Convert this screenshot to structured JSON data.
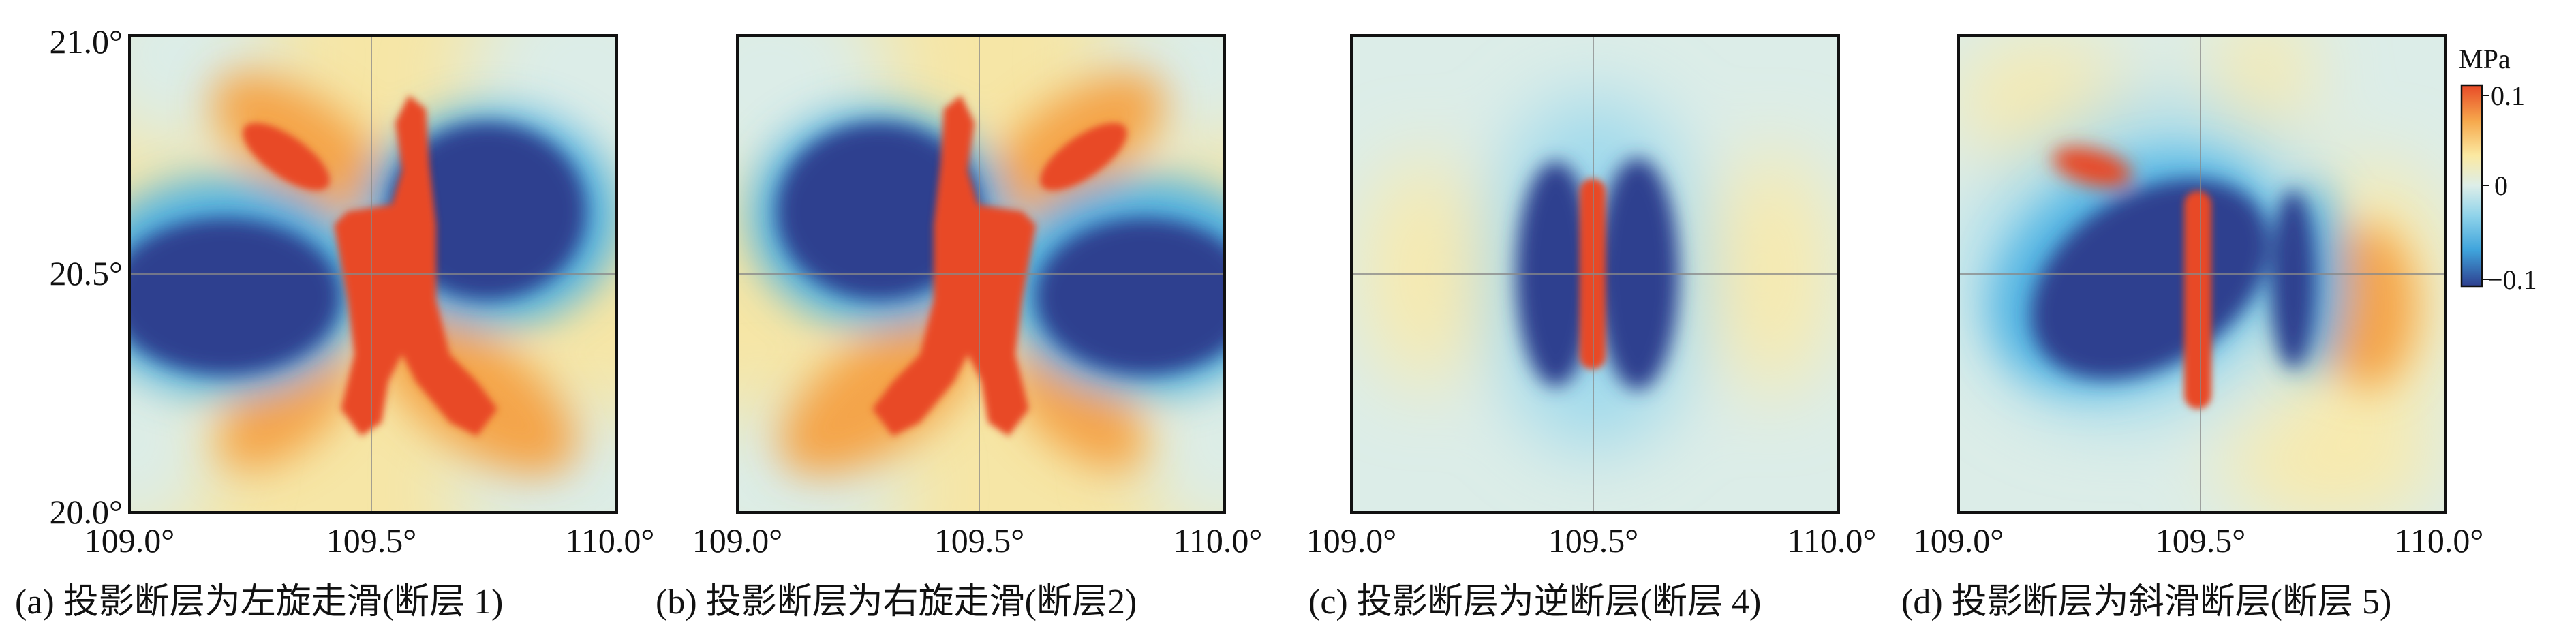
{
  "chart_data": [
    {
      "type": "heatmap",
      "panel": "a",
      "caption": "(a) 投影断层为左旋走滑(断层 1)",
      "xlim": [
        109.0,
        110.0
      ],
      "ylim": [
        20.0,
        21.0
      ],
      "x_ticks": [
        "109.0°",
        "109.5°",
        "110.0°"
      ],
      "y_ticks": [
        "21.0°",
        "20.5°",
        "20.0°"
      ],
      "pattern": "left-lateral strike-slip: red X-shaped lobes, blue lobes west and east",
      "colorbar_range": [
        -0.1,
        0.1
      ]
    },
    {
      "type": "heatmap",
      "panel": "b",
      "caption": "(b) 投影断层为右旋走滑(断层2)",
      "xlim": [
        109.0,
        110.0
      ],
      "ylim": [
        20.0,
        21.0
      ],
      "x_ticks": [
        "109.0°",
        "109.5°",
        "110.0°"
      ],
      "pattern": "right-lateral strike-slip: mirrored X-shaped red lobes, blue lobes west and east",
      "colorbar_range": [
        -0.1,
        0.1
      ]
    },
    {
      "type": "heatmap",
      "panel": "c",
      "caption": "(c) 投影断层为逆断层(断层 4)",
      "xlim": [
        109.0,
        110.0
      ],
      "ylim": [
        20.0,
        21.0
      ],
      "x_ticks": [
        "109.0°",
        "109.5°",
        "110.0°"
      ],
      "pattern": "reverse fault: narrow red strip flanked by two blue ovals",
      "colorbar_range": [
        -0.1,
        0.1
      ]
    },
    {
      "type": "heatmap",
      "panel": "d",
      "caption": "(d) 投影断层为斜滑断层(断层 5)",
      "xlim": [
        109.0,
        110.0
      ],
      "ylim": [
        20.0,
        21.0
      ],
      "x_ticks": [
        "109.0°",
        "109.5°",
        "110.0°"
      ],
      "pattern": "oblique-slip fault: red strip, tilted large blue lobe west, smaller blue lobe east",
      "colorbar_range": [
        -0.1,
        0.1
      ]
    }
  ],
  "colorbar": {
    "unit": "MPa",
    "ticks": [
      {
        "value": 0.1,
        "label": "0.1"
      },
      {
        "value": 0,
        "label": "0"
      },
      {
        "value": -0.1,
        "label": "−0.1"
      }
    ],
    "colors": {
      "max": "#e84a27",
      "high": "#f6a94d",
      "mid_high": "#fbe9a2",
      "zero": "#ddeee9",
      "mid_low": "#8fd3ea",
      "low": "#3fa4dc",
      "min": "#2e3f8f"
    }
  }
}
